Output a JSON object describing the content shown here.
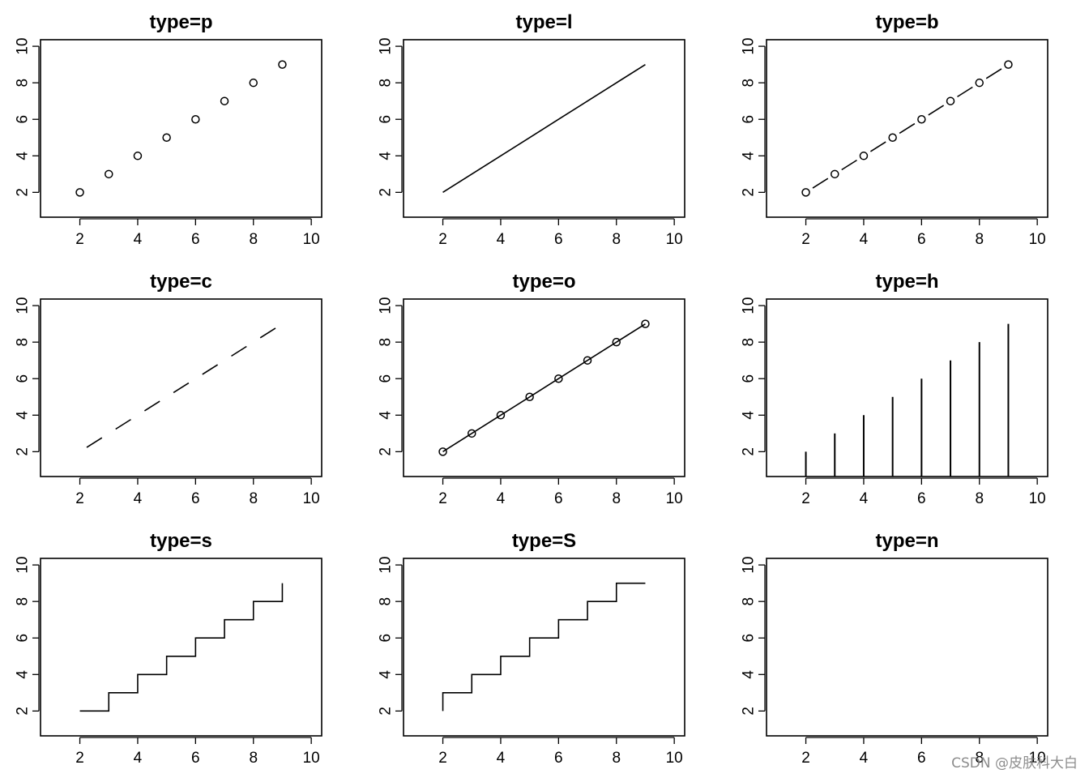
{
  "chart_data": [
    {
      "type": "scatter",
      "plot_type": "p",
      "title": "type=p",
      "x": [
        2,
        3,
        4,
        5,
        6,
        7,
        8,
        9
      ],
      "y": [
        2,
        3,
        4,
        5,
        6,
        7,
        8,
        9
      ],
      "xlim": [
        1,
        10
      ],
      "ylim": [
        1,
        10
      ],
      "x_ticks": [
        "2",
        "4",
        "6",
        "8",
        "10"
      ],
      "y_ticks": [
        "2",
        "4",
        "6",
        "8",
        "10"
      ]
    },
    {
      "type": "line",
      "plot_type": "l",
      "title": "type=l",
      "x": [
        2,
        3,
        4,
        5,
        6,
        7,
        8,
        9
      ],
      "y": [
        2,
        3,
        4,
        5,
        6,
        7,
        8,
        9
      ],
      "xlim": [
        1,
        10
      ],
      "ylim": [
        1,
        10
      ],
      "x_ticks": [
        "2",
        "4",
        "6",
        "8",
        "10"
      ],
      "y_ticks": [
        "2",
        "4",
        "6",
        "8",
        "10"
      ]
    },
    {
      "type": "line",
      "plot_type": "b",
      "title": "type=b",
      "x": [
        2,
        3,
        4,
        5,
        6,
        7,
        8,
        9
      ],
      "y": [
        2,
        3,
        4,
        5,
        6,
        7,
        8,
        9
      ],
      "xlim": [
        1,
        10
      ],
      "ylim": [
        1,
        10
      ],
      "x_ticks": [
        "2",
        "4",
        "6",
        "8",
        "10"
      ],
      "y_ticks": [
        "2",
        "4",
        "6",
        "8",
        "10"
      ]
    },
    {
      "type": "line",
      "plot_type": "c",
      "title": "type=c",
      "x": [
        2,
        3,
        4,
        5,
        6,
        7,
        8,
        9
      ],
      "y": [
        2,
        3,
        4,
        5,
        6,
        7,
        8,
        9
      ],
      "xlim": [
        1,
        10
      ],
      "ylim": [
        1,
        10
      ],
      "x_ticks": [
        "2",
        "4",
        "6",
        "8",
        "10"
      ],
      "y_ticks": [
        "2",
        "4",
        "6",
        "8",
        "10"
      ]
    },
    {
      "type": "line",
      "plot_type": "o",
      "title": "type=o",
      "x": [
        2,
        3,
        4,
        5,
        6,
        7,
        8,
        9
      ],
      "y": [
        2,
        3,
        4,
        5,
        6,
        7,
        8,
        9
      ],
      "xlim": [
        1,
        10
      ],
      "ylim": [
        1,
        10
      ],
      "x_ticks": [
        "2",
        "4",
        "6",
        "8",
        "10"
      ],
      "y_ticks": [
        "2",
        "4",
        "6",
        "8",
        "10"
      ]
    },
    {
      "type": "bar",
      "plot_type": "h",
      "title": "type=h",
      "x": [
        2,
        3,
        4,
        5,
        6,
        7,
        8,
        9
      ],
      "y": [
        2,
        3,
        4,
        5,
        6,
        7,
        8,
        9
      ],
      "xlim": [
        1,
        10
      ],
      "ylim": [
        1,
        10
      ],
      "x_ticks": [
        "2",
        "4",
        "6",
        "8",
        "10"
      ],
      "y_ticks": [
        "2",
        "4",
        "6",
        "8",
        "10"
      ]
    },
    {
      "type": "line",
      "plot_type": "s",
      "title": "type=s",
      "x": [
        2,
        3,
        4,
        5,
        6,
        7,
        8,
        9
      ],
      "y": [
        2,
        3,
        4,
        5,
        6,
        7,
        8,
        9
      ],
      "xlim": [
        1,
        10
      ],
      "ylim": [
        1,
        10
      ],
      "x_ticks": [
        "2",
        "4",
        "6",
        "8",
        "10"
      ],
      "y_ticks": [
        "2",
        "4",
        "6",
        "8",
        "10"
      ]
    },
    {
      "type": "line",
      "plot_type": "S",
      "title": "type=S",
      "x": [
        2,
        3,
        4,
        5,
        6,
        7,
        8,
        9
      ],
      "y": [
        2,
        3,
        4,
        5,
        6,
        7,
        8,
        9
      ],
      "xlim": [
        1,
        10
      ],
      "ylim": [
        1,
        10
      ],
      "x_ticks": [
        "2",
        "4",
        "6",
        "8",
        "10"
      ],
      "y_ticks": [
        "2",
        "4",
        "6",
        "8",
        "10"
      ]
    },
    {
      "type": "scatter",
      "plot_type": "n",
      "title": "type=n",
      "x": [],
      "y": [],
      "xlim": [
        1,
        10
      ],
      "ylim": [
        1,
        10
      ],
      "x_ticks": [
        "2",
        "4",
        "6",
        "8",
        "10"
      ],
      "y_ticks": [
        "2",
        "4",
        "6",
        "8",
        "10"
      ]
    }
  ],
  "watermark": "CSDN @皮肤科大白"
}
